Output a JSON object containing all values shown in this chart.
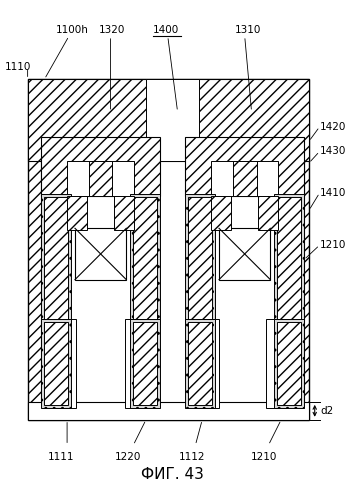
{
  "title": "ФИГ. 43",
  "label_1100h": "1100h",
  "label_1110": "1110",
  "label_1320": "1320",
  "label_1400": "1400",
  "label_1310": "1310",
  "label_1420": "1420",
  "label_1430": "1430",
  "label_1410": "1410",
  "label_1210_right": "1210",
  "label_1210_bot": "1210",
  "label_1111": "1111",
  "label_1220": "1220",
  "label_1112": "1112",
  "label_d2": "d2",
  "bg_color": "#ffffff",
  "line_color": "#000000"
}
